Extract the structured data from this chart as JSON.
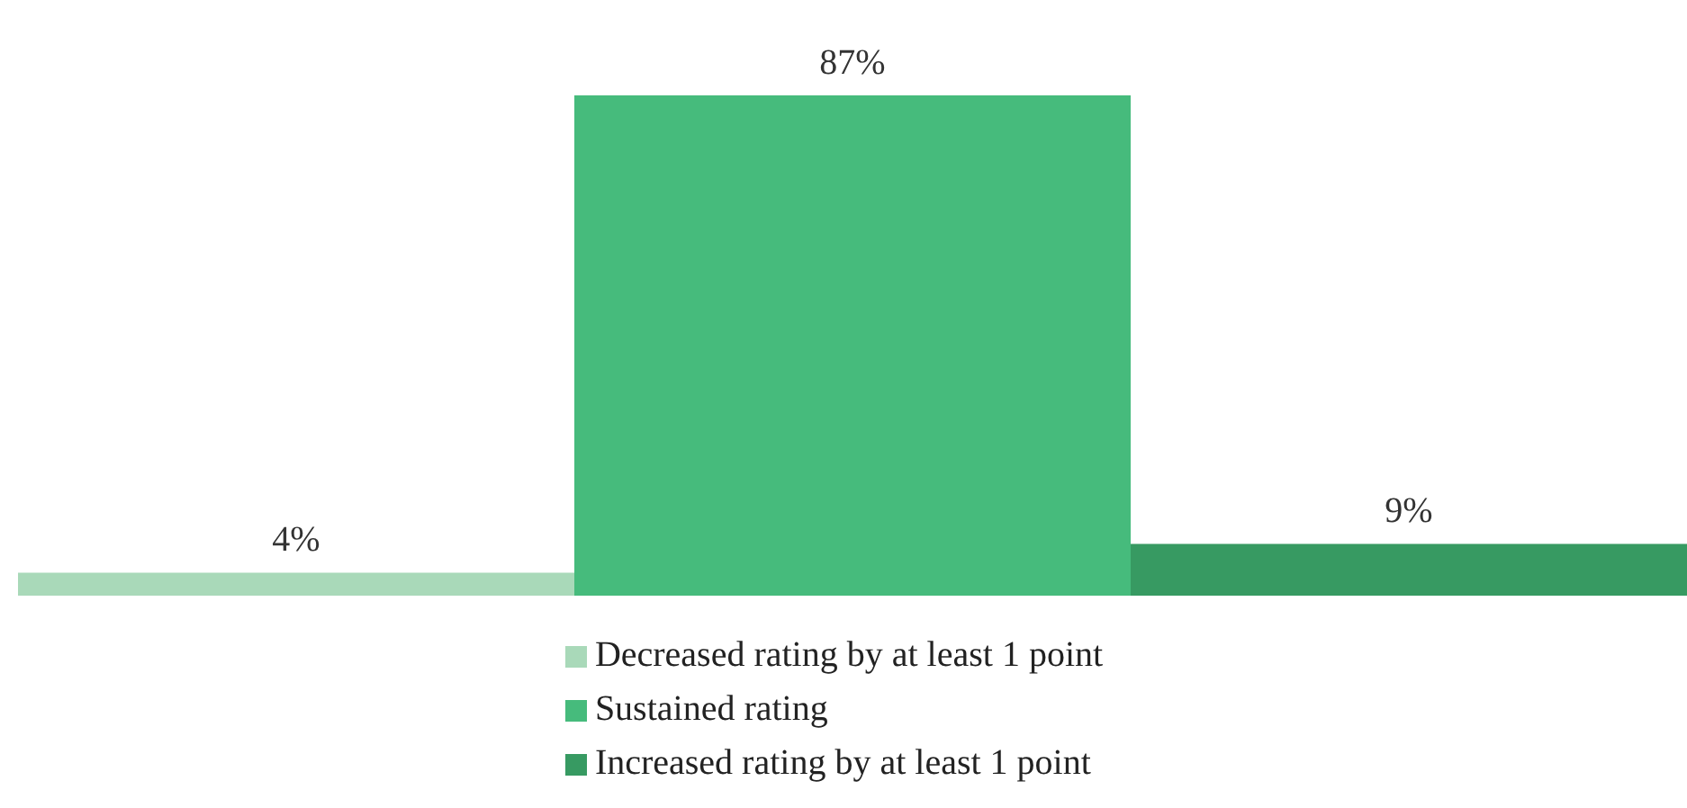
{
  "chart_data": {
    "type": "bar",
    "categories": [
      null
    ],
    "series": [
      {
        "name": "Decreased rating by at least 1 point",
        "color": "#a9d9b9",
        "values": [
          4
        ],
        "value_labels": [
          "4%"
        ]
      },
      {
        "name": "Sustained rating",
        "color": "#46bb7c",
        "values": [
          87
        ],
        "value_labels": [
          "87%"
        ]
      },
      {
        "name": "Increased rating by at least 1 point",
        "color": "#379a62",
        "values": [
          9
        ],
        "value_labels": [
          "9%"
        ]
      }
    ],
    "legend": "bottom",
    "grid": false
  }
}
